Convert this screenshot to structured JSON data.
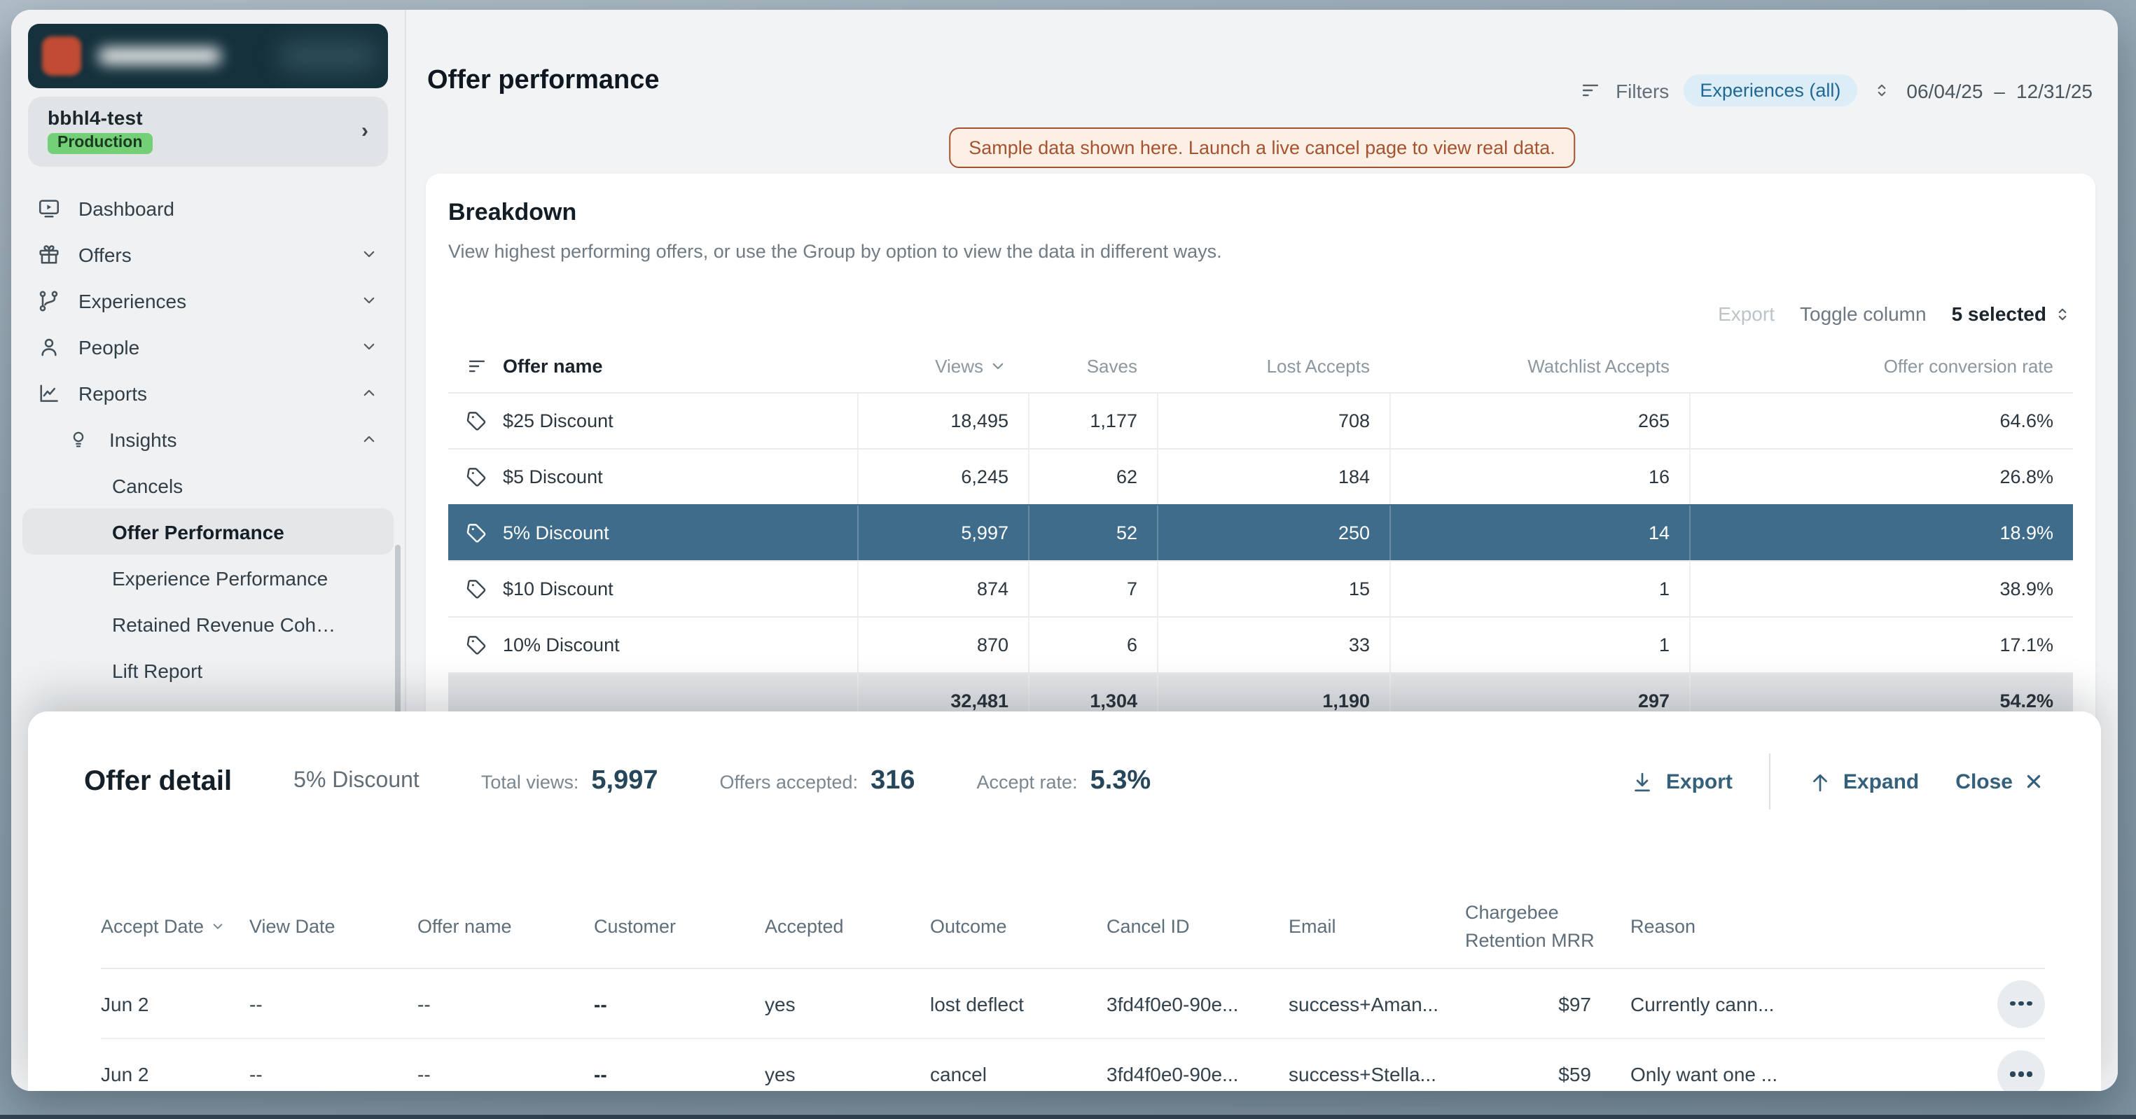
{
  "sidebar": {
    "account_name": "bbhl4-test",
    "account_badge": "Production",
    "items": [
      {
        "label": "Dashboard",
        "icon": "dashboard-icon",
        "level": 0
      },
      {
        "label": "Offers",
        "icon": "gift-icon",
        "level": 0,
        "chevron": "down"
      },
      {
        "label": "Experiences",
        "icon": "branch-icon",
        "level": 0,
        "chevron": "down"
      },
      {
        "label": "People",
        "icon": "person-icon",
        "level": 0,
        "chevron": "down"
      },
      {
        "label": "Reports",
        "icon": "chart-icon",
        "level": 0,
        "chevron": "up"
      },
      {
        "label": "Insights",
        "icon": "bulb-icon",
        "level": 1,
        "chevron": "up"
      },
      {
        "label": "Cancels",
        "level": 2
      },
      {
        "label": "Offer Performance",
        "level": 2,
        "selected": true
      },
      {
        "label": "Experience Performance",
        "level": 2
      },
      {
        "label": "Retained Revenue Coh…",
        "level": 2
      },
      {
        "label": "Lift Report",
        "level": 2
      }
    ]
  },
  "header": {
    "title": "Offer performance",
    "filters_label": "Filters",
    "experience_filter": "Experiences (all)",
    "date_range_start": "06/04/25",
    "date_range_separator": "–",
    "date_range_end": "12/31/25"
  },
  "notice": {
    "text": "Sample data shown here. Launch a live cancel page to view real data."
  },
  "breakdown": {
    "title": "Breakdown",
    "description": "View highest performing offers, or use the Group by option to view the data in different ways.",
    "export_label": "Export",
    "toggle_column_label": "Toggle column",
    "toggle_column_value": "5 selected",
    "columns": [
      "Offer name",
      "Views",
      "Saves",
      "Lost Accepts",
      "Watchlist Accepts",
      "Offer conversion rate"
    ],
    "sorted_column": "Views",
    "rows": [
      {
        "name": "$25 Discount",
        "views": "18,495",
        "saves": "1,177",
        "lost_accepts": "708",
        "watchlist_accepts": "265",
        "conversion_rate": "64.6%",
        "selected": false
      },
      {
        "name": "$5 Discount",
        "views": "6,245",
        "saves": "62",
        "lost_accepts": "184",
        "watchlist_accepts": "16",
        "conversion_rate": "26.8%",
        "selected": false
      },
      {
        "name": "5% Discount",
        "views": "5,997",
        "saves": "52",
        "lost_accepts": "250",
        "watchlist_accepts": "14",
        "conversion_rate": "18.9%",
        "selected": true
      },
      {
        "name": "$10 Discount",
        "views": "874",
        "saves": "7",
        "lost_accepts": "15",
        "watchlist_accepts": "1",
        "conversion_rate": "38.9%",
        "selected": false
      },
      {
        "name": "10% Discount",
        "views": "870",
        "saves": "6",
        "lost_accepts": "33",
        "watchlist_accepts": "1",
        "conversion_rate": "17.1%",
        "selected": false
      }
    ],
    "totals_row": {
      "name": "",
      "views": "32,481",
      "saves": "1,304",
      "lost_accepts": "1,190",
      "watchlist_accepts": "297",
      "conversion_rate": "54.2%",
      "partially_visible": true
    }
  },
  "offer_detail": {
    "title": "Offer detail",
    "offer_name": "5% Discount",
    "metrics": [
      {
        "label": "Total views:",
        "value": "5,997"
      },
      {
        "label": "Offers accepted:",
        "value": "316"
      },
      {
        "label": "Accept rate:",
        "value": "5.3%"
      }
    ],
    "export_label": "Export",
    "expand_label": "Expand",
    "close_label": "Close",
    "columns": [
      "Accept Date",
      "View Date",
      "Offer name",
      "Customer",
      "Accepted",
      "Outcome",
      "Cancel ID",
      "Email",
      "Chargebee Retention MRR",
      "Reason"
    ],
    "sorted_column": "Accept Date",
    "rows": [
      {
        "accept_date": "Jun 2",
        "view_date": "--",
        "offer_name": "--",
        "customer": "--",
        "accepted": "yes",
        "outcome": "lost deflect",
        "cancel_id": "3fd4f0e0-90e...",
        "email": "success+Aman...",
        "chargebee_retention_mrr": "$97",
        "reason": "Currently cann..."
      },
      {
        "accept_date": "Jun 2",
        "view_date": "--",
        "offer_name": "--",
        "customer": "--",
        "accepted": "yes",
        "outcome": "cancel",
        "cancel_id": "3fd4f0e0-90e...",
        "email": "success+Stella...",
        "chargebee_retention_mrr": "$59",
        "reason": "Only want one ..."
      }
    ]
  },
  "icons": {
    "sidebar": [
      "dashboard-icon",
      "gift-icon",
      "branch-icon",
      "person-icon",
      "chart-icon",
      "bulb-icon"
    ],
    "other": [
      "filter-icon",
      "sort-updown-icon",
      "chevron-down-icon",
      "chevron-up-icon",
      "chevron-right-icon",
      "tag-icon",
      "download-icon",
      "arrow-up-icon",
      "close-icon",
      "ellipsis-icon"
    ]
  },
  "colors": {
    "selected_row": "#3f6c8b",
    "accent_blue": "#35607c",
    "notice": "#a65231",
    "badge_green": "#74d077",
    "filter_pill_bg": "#dcedf8",
    "filter_pill_text": "#1f6893",
    "logo_block": "#15313c"
  }
}
